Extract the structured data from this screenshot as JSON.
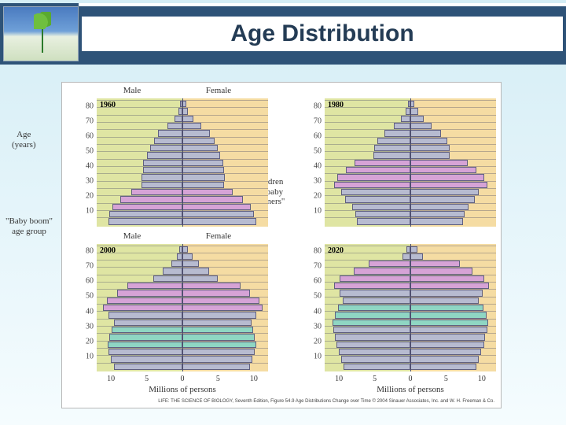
{
  "header": {
    "title": "Age Distribution"
  },
  "axis": {
    "y_label_lines": [
      "Age",
      "(years)"
    ],
    "y_ticks": [
      80,
      70,
      60,
      50,
      40,
      30,
      20,
      10
    ],
    "x_caption": "Millions of persons",
    "x_ticks": [
      10,
      5,
      0,
      5,
      10
    ],
    "sex_labels": {
      "male": "Male",
      "female": "Female"
    }
  },
  "annotations": {
    "baby_boom": {
      "lines": [
        "\"Baby boom\"",
        "age group"
      ]
    },
    "children": {
      "lines": [
        "Children",
        "of \"baby",
        "boomers\""
      ]
    }
  },
  "credit": "LIFE: THE SCIENCE OF BIOLOGY, Seventh Edition, Figure 54.9 Age Distributions Change over Time  © 2004 Sinauer Associates, Inc. and W. H. Freeman & Co.",
  "colors": {
    "male_bg": "#dfe5a3",
    "female_bg": "#f5dca3",
    "bar_default": "#b7bbd0",
    "bar_boom": "#d6a3d6",
    "bar_children": "#8fd6c3",
    "bar_border": "#606080",
    "grid": "#c5c5cc",
    "axis_line": "#4b4b6b"
  },
  "chart": {
    "type": "population-pyramid-small-multiples",
    "x_max": 12,
    "age_band_width_years": 5,
    "n_bands": 17,
    "panels": [
      {
        "year": "1960",
        "highlight": {
          "type": "boom",
          "band_idx": [
            12,
            13,
            14
          ]
        },
        "male": [
          0.3,
          0.6,
          1.1,
          2.1,
          3.4,
          4.0,
          4.5,
          5.0,
          5.5,
          5.5,
          5.7,
          5.7,
          7.2,
          8.7,
          9.8,
          10.2,
          10.4
        ],
        "female": [
          0.5,
          0.8,
          1.5,
          2.6,
          3.8,
          4.5,
          5.0,
          5.3,
          5.7,
          5.8,
          5.9,
          5.8,
          7.0,
          8.5,
          9.6,
          10.0,
          10.3
        ]
      },
      {
        "year": "1980",
        "highlight": {
          "type": "boom",
          "band_idx": [
            8,
            9,
            10,
            11
          ]
        },
        "male": [
          0.3,
          0.7,
          1.3,
          2.3,
          3.6,
          4.6,
          5.1,
          5.2,
          7.8,
          9.0,
          10.2,
          10.7,
          9.7,
          9.1,
          8.2,
          7.7,
          7.5
        ],
        "female": [
          0.6,
          1.1,
          1.9,
          3.0,
          4.3,
          5.2,
          5.5,
          5.5,
          8.0,
          9.2,
          10.3,
          10.8,
          9.6,
          9.0,
          8.1,
          7.6,
          7.4
        ]
      },
      {
        "year": "2000",
        "highlight": {
          "type": "boom",
          "band_idx": [
            5,
            6,
            7,
            8
          ]
        },
        "highlight2": {
          "type": "children",
          "band_idx": [
            11,
            12,
            13
          ]
        },
        "male": [
          0.4,
          0.8,
          1.5,
          2.8,
          4.1,
          7.7,
          9.1,
          10.6,
          11.1,
          10.3,
          9.6,
          9.9,
          10.2,
          10.5,
          10.3,
          10.0,
          9.6
        ],
        "female": [
          0.8,
          1.4,
          2.3,
          3.7,
          5.0,
          8.1,
          9.5,
          10.8,
          11.2,
          10.4,
          9.7,
          9.9,
          10.1,
          10.3,
          10.1,
          9.8,
          9.5
        ]
      },
      {
        "year": "2020",
        "highlight": {
          "type": "boom",
          "band_idx": [
            2,
            3,
            4,
            5
          ]
        },
        "highlight2": {
          "type": "children",
          "band_idx": [
            8,
            9,
            10
          ]
        },
        "male": [
          0.5,
          1.1,
          5.8,
          7.9,
          9.9,
          10.7,
          9.9,
          9.5,
          10.1,
          10.6,
          10.9,
          10.8,
          10.6,
          10.4,
          10.0,
          9.7,
          9.4
        ],
        "female": [
          1.0,
          1.8,
          6.9,
          8.7,
          10.4,
          11.0,
          10.1,
          9.6,
          10.2,
          10.7,
          10.9,
          10.8,
          10.5,
          10.3,
          9.9,
          9.6,
          9.3
        ]
      }
    ]
  }
}
